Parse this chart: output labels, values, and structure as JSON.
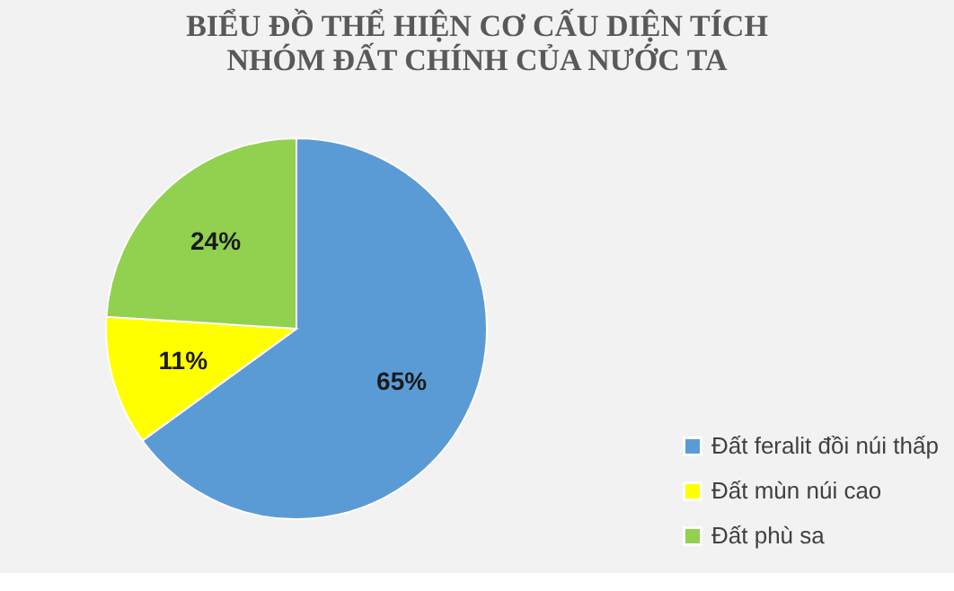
{
  "chart_data": {
    "type": "pie",
    "title": "BIỂU ĐỒ THỂ HIỆN CƠ CẤU DIỆN TÍCH NHÓM ĐẤT CHÍNH CỦA NƯỚC TA",
    "categories": [
      "Đất feralit đồi núi thấp",
      "Đất mùn núi cao",
      "Đất phù sa"
    ],
    "values": [
      65,
      11,
      24
    ],
    "colors": [
      "#5b9bd5",
      "#ffff00",
      "#92d050"
    ],
    "value_labels": [
      "65%",
      "11%",
      "24%"
    ],
    "legend": "bottom right"
  }
}
